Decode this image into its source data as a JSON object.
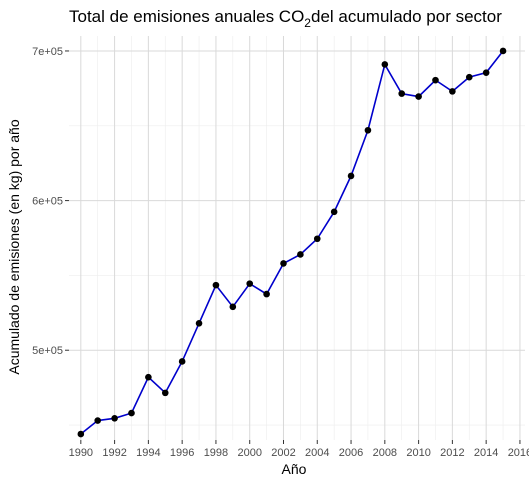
{
  "chart_data": {
    "type": "line",
    "title_main": "Total de emisiones anuales CO",
    "title_sub": "2",
    "title_rest": "del acumulado por sector",
    "xlabel": "Año",
    "ylabel": "Acumulado de emisiones (en kg) por año",
    "xlim": [
      1989.3,
      2016.3
    ],
    "ylim": [
      440000,
      710000
    ],
    "x_ticks": [
      1990,
      1992,
      1994,
      1996,
      1998,
      2000,
      2002,
      2004,
      2006,
      2008,
      2010,
      2012,
      2014,
      2016
    ],
    "x_tick_labels": [
      "1990",
      "1992",
      "1994",
      "1996",
      "1998",
      "2000",
      "2002",
      "2004",
      "2006",
      "2008",
      "2010",
      "2012",
      "2014",
      "2016"
    ],
    "y_ticks": [
      500000,
      600000,
      700000
    ],
    "y_tick_labels": [
      "5e+05",
      "6e+05",
      "7e+05"
    ],
    "grid": true,
    "line_color": "#0000cc",
    "point_color": "#000000",
    "series": [
      {
        "x": [
          1990,
          1991,
          1992,
          1993,
          1994,
          1995,
          1996,
          1997,
          1998,
          1999,
          2000,
          2001,
          2002,
          2003,
          2004,
          2005,
          2006,
          2007,
          2008,
          2009,
          2010,
          2011,
          2012,
          2013,
          2014,
          2015
        ],
        "values": [
          444000,
          453000,
          454500,
          458000,
          482000,
          471500,
          492500,
          518000,
          543500,
          529000,
          544500,
          537500,
          558000,
          564000,
          574500,
          592500,
          616500,
          647000,
          691000,
          671500,
          669500,
          680500,
          673000,
          682500,
          685500,
          700000
        ]
      }
    ]
  }
}
